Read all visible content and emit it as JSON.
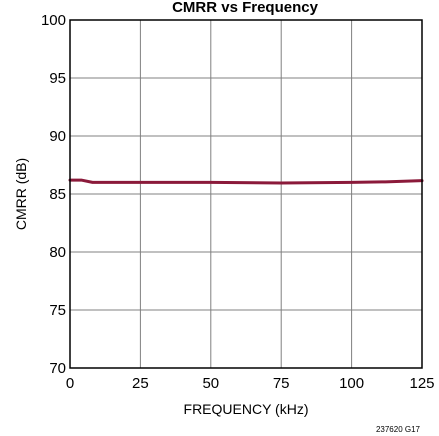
{
  "chart_data": {
    "type": "line",
    "title": "CMRR vs Frequency",
    "xlabel": "FREQUENCY (kHz)",
    "ylabel": "CMRR (dB)",
    "xlim": [
      0,
      125
    ],
    "ylim": [
      70,
      100
    ],
    "x_ticks": [
      0,
      25,
      50,
      75,
      100,
      125
    ],
    "y_ticks": [
      70,
      75,
      80,
      85,
      90,
      95,
      100
    ],
    "grid": true,
    "legend": "none",
    "series": [
      {
        "color": "#8b1a3a",
        "x": [
          0,
          4,
          8,
          12,
          25,
          50,
          75,
          100,
          112,
          125
        ],
        "y": [
          86.2,
          86.2,
          86.0,
          86.0,
          86.0,
          86.0,
          85.95,
          86.0,
          86.05,
          86.15
        ]
      }
    ],
    "figure_code": "237620 G17"
  }
}
